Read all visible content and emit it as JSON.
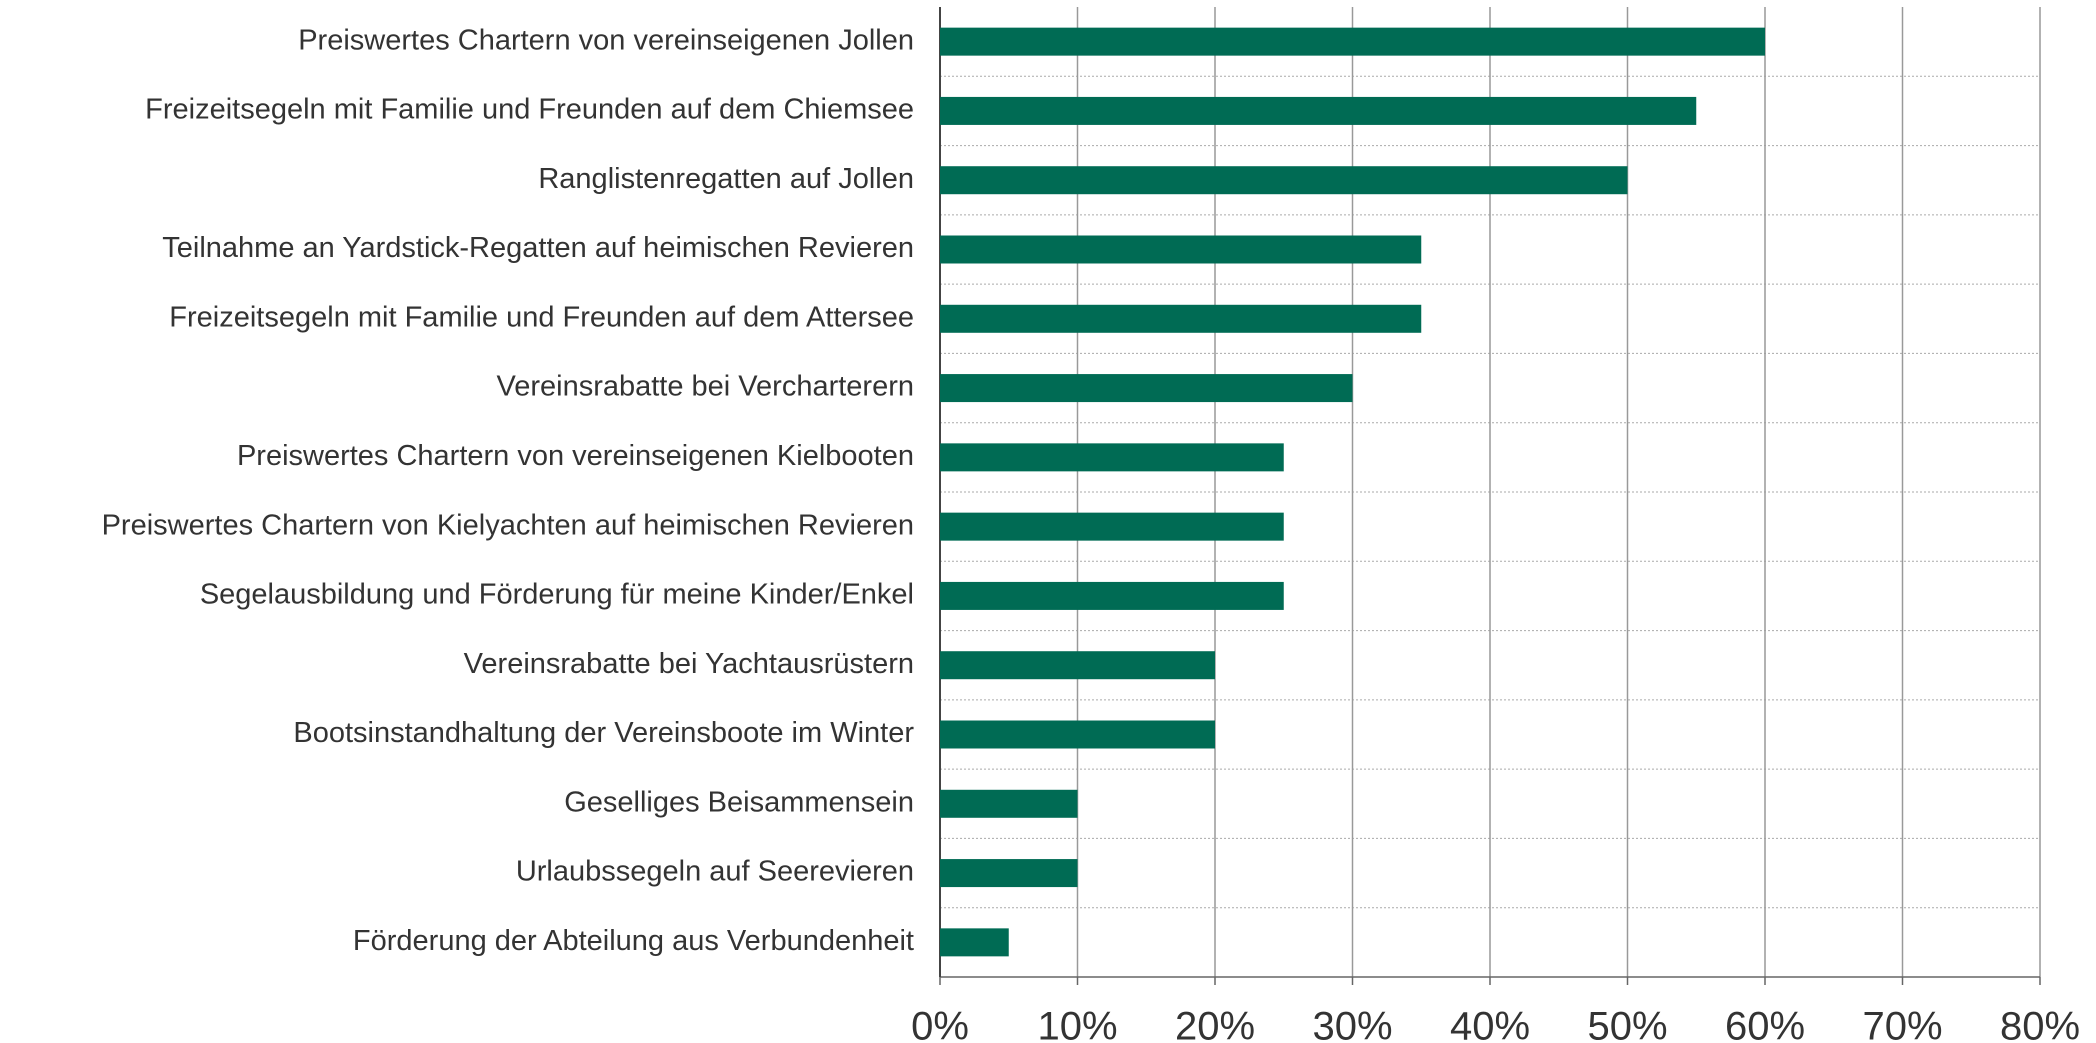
{
  "chart_data": {
    "type": "hbar",
    "categories": [
      "Preiswertes Chartern von vereinseigenen Jollen",
      "Freizeitsegeln mit Familie und Freunden auf dem Chiemsee",
      "Ranglistenregatten auf Jollen",
      "Teilnahme an Yardstick-Regatten auf heimischen Revieren",
      "Freizeitsegeln mit Familie und Freunden auf dem Attersee",
      "Vereinsrabatte bei Vercharterern",
      "Preiswertes Chartern von vereinseigenen Kielbooten",
      "Preiswertes Chartern von Kielyachten auf heimischen Revieren",
      "Segelausbildung und Förderung für meine Kinder/Enkel",
      "Vereinsrabatte bei Yachtausrüstern",
      "Bootsinstandhaltung der Vereinsboote im Winter",
      "Geselliges Beisammensein",
      "Urlaubssegeln auf Seerevieren",
      "Förderung der Abteilung aus Verbundenheit"
    ],
    "values": [
      60,
      55,
      50,
      35,
      35,
      30,
      25,
      25,
      25,
      20,
      20,
      10,
      10,
      5
    ],
    "color": "#006b54",
    "xlim": [
      0,
      80
    ],
    "xticks": [
      {
        "value": 0,
        "label": "0%"
      },
      {
        "value": 10,
        "label": "10%"
      },
      {
        "value": 20,
        "label": "20%"
      },
      {
        "value": 30,
        "label": "30%"
      },
      {
        "value": 40,
        "label": "40%"
      },
      {
        "value": 50,
        "label": "50%"
      },
      {
        "value": 60,
        "label": "60%"
      },
      {
        "value": 70,
        "label": "70%"
      },
      {
        "value": 80,
        "label": "80%"
      }
    ],
    "grid": true
  }
}
